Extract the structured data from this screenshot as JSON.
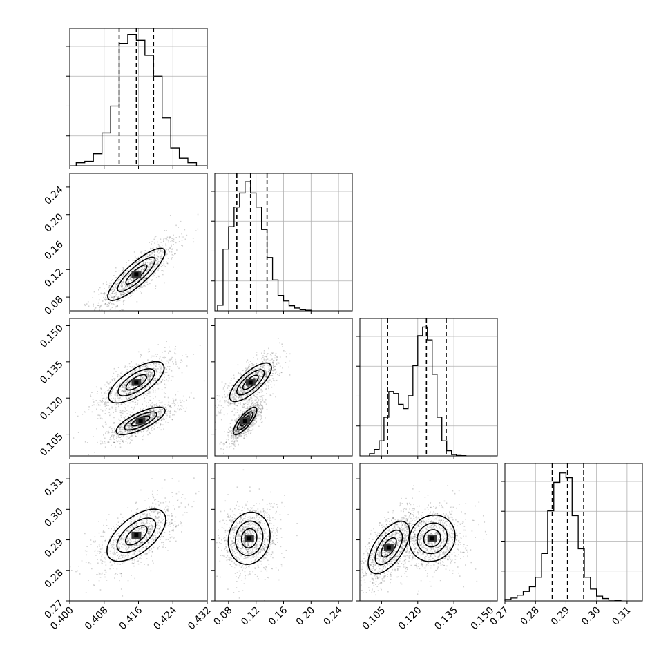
{
  "chart_data": {
    "type": "corner",
    "parameters": [
      {
        "ylim": [
          0.4,
          0.432
        ],
        "ticks": [
          "0.400",
          "0.408",
          "0.416",
          "0.424",
          "0.432"
        ],
        "quantiles": [
          0.4115,
          0.4155,
          0.4195
        ]
      },
      {
        "ylim": [
          0.06,
          0.26
        ],
        "ticks": [
          "0.08",
          "0.12",
          "0.16",
          "0.20",
          "0.24"
        ],
        "quantiles": [
          0.092,
          0.112,
          0.136
        ]
      },
      {
        "ylim": [
          0.096,
          0.153
        ],
        "ticks": [
          "0.105",
          "0.120",
          "0.135",
          "0.150"
        ],
        "quantiles": [
          0.1075,
          0.1236,
          0.1318
        ]
      },
      {
        "ylim": [
          0.27,
          0.315
        ],
        "ticks": [
          "0.27",
          "0.28",
          "0.29",
          "0.30",
          "0.31"
        ],
        "quantiles": [
          0.2855,
          0.2905,
          0.2958
        ]
      }
    ],
    "diagonal_histograms": [
      {
        "index": 0,
        "bin_edges": [
          0.4015,
          0.4035,
          0.4055,
          0.4075,
          0.4095,
          0.4115,
          0.4135,
          0.4155,
          0.4175,
          0.4195,
          0.4215,
          0.4235,
          0.4255,
          0.4275,
          0.4295
        ],
        "counts": [
          1,
          1.5,
          4,
          11,
          20,
          41,
          44,
          42,
          37,
          30,
          16,
          6,
          2.5,
          1
        ],
        "ylim": [
          0,
          46
        ]
      },
      {
        "index": 1,
        "bin_edges": [
          0.064,
          0.072,
          0.08,
          0.088,
          0.096,
          0.104,
          0.112,
          0.12,
          0.128,
          0.136,
          0.144,
          0.152,
          0.16,
          0.168,
          0.176,
          0.184,
          0.192,
          0.2
        ],
        "counts": [
          2,
          22,
          30,
          37,
          42,
          46,
          42,
          37,
          29,
          19,
          11,
          5.5,
          3.5,
          1.8,
          1,
          0.4,
          0.2
        ],
        "ylim": [
          0,
          49
        ]
      },
      {
        "index": 2,
        "bin_edges": [
          0.1,
          0.102,
          0.104,
          0.106,
          0.108,
          0.11,
          0.112,
          0.114,
          0.116,
          0.118,
          0.12,
          0.122,
          0.124,
          0.126,
          0.128,
          0.13,
          0.132,
          0.134,
          0.136,
          0.138,
          0.14
        ],
        "counts": [
          0.5,
          1.5,
          3.5,
          9,
          15,
          14.5,
          12,
          11,
          14,
          21,
          28,
          30,
          27,
          19,
          9,
          3.5,
          1.2,
          0.3,
          0.1,
          0.05
        ],
        "ylim": [
          0,
          32
        ]
      },
      {
        "index": 3,
        "bin_edges": [
          0.27,
          0.272,
          0.274,
          0.276,
          0.278,
          0.28,
          0.282,
          0.284,
          0.286,
          0.288,
          0.29,
          0.292,
          0.294,
          0.296,
          0.298,
          0.3,
          0.302,
          0.304,
          0.306,
          0.308
        ],
        "counts": [
          0.3,
          0.6,
          1.2,
          2,
          3,
          5,
          10,
          19,
          25,
          27,
          26,
          18,
          11,
          5,
          2.5,
          1,
          0.5,
          0.2,
          0.1
        ],
        "ylim": [
          0,
          29
        ]
      }
    ],
    "joint_panels": [
      {
        "row": 1,
        "col": 0,
        "modes": [
          {
            "x": 0.4155,
            "y": 0.113,
            "sx": 0.0035,
            "sy": 0.02,
            "rho": 0.85
          }
        ]
      },
      {
        "row": 2,
        "col": 0,
        "modes": [
          {
            "x": 0.4155,
            "y": 0.1265,
            "sx": 0.0034,
            "sy": 0.0045,
            "rho": 0.7
          },
          {
            "x": 0.4165,
            "y": 0.1105,
            "sx": 0.003,
            "sy": 0.003,
            "rho": 0.75
          }
        ]
      },
      {
        "row": 2,
        "col": 1,
        "modes": [
          {
            "x": 0.112,
            "y": 0.1265,
            "sx": 0.016,
            "sy": 0.0042,
            "rho": 0.75
          },
          {
            "x": 0.104,
            "y": 0.1105,
            "sx": 0.009,
            "sy": 0.003,
            "rho": 0.8
          }
        ]
      },
      {
        "row": 3,
        "col": 0,
        "modes": [
          {
            "x": 0.4155,
            "y": 0.2915,
            "sx": 0.0036,
            "sy": 0.0045,
            "rho": 0.6
          }
        ]
      },
      {
        "row": 3,
        "col": 1,
        "modes": [
          {
            "x": 0.11,
            "y": 0.2905,
            "sx": 0.016,
            "sy": 0.0045,
            "rho": 0.1
          }
        ]
      },
      {
        "row": 3,
        "col": 2,
        "modes": [
          {
            "x": 0.126,
            "y": 0.2905,
            "sx": 0.005,
            "sy": 0.004,
            "rho": 0.1
          },
          {
            "x": 0.108,
            "y": 0.2875,
            "sx": 0.0045,
            "sy": 0.0045,
            "rho": 0.6
          }
        ]
      }
    ],
    "grid": true,
    "title": "",
    "axis_labels": []
  },
  "colors": {
    "ink": "#000000",
    "grid": "#b0b0b0",
    "fill_dark": "#3a3a3a",
    "fill_mid": "#7a7a7a",
    "fill_light": "#c8c8c8",
    "scatter": "#000000"
  }
}
